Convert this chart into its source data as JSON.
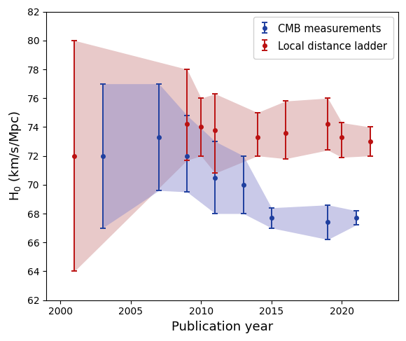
{
  "xlabel": "Publication year",
  "ylabel": "H$_0$ (km/s/Mpc)",
  "xlim": [
    1999,
    2024
  ],
  "ylim": [
    62,
    82
  ],
  "yticks": [
    62,
    64,
    66,
    68,
    70,
    72,
    74,
    76,
    78,
    80,
    82
  ],
  "xticks": [
    2000,
    2005,
    2010,
    2015,
    2020
  ],
  "cmb_years": [
    2003,
    2007,
    2009,
    2011,
    2013,
    2015,
    2019,
    2021
  ],
  "cmb_values": [
    72.0,
    73.3,
    72.0,
    70.5,
    70.0,
    67.7,
    67.4,
    67.7
  ],
  "cmb_err_lo": [
    5.0,
    3.7,
    2.5,
    2.5,
    2.0,
    0.7,
    1.2,
    0.5
  ],
  "cmb_err_hi": [
    5.0,
    3.7,
    2.8,
    2.5,
    2.0,
    0.7,
    1.2,
    0.5
  ],
  "local_years": [
    2001,
    2009,
    2010,
    2011,
    2014,
    2016,
    2019,
    2020,
    2022
  ],
  "local_values": [
    72.0,
    74.2,
    74.0,
    73.8,
    73.3,
    73.6,
    74.2,
    73.3,
    73.0
  ],
  "local_err_lo": [
    8.0,
    2.5,
    2.0,
    3.0,
    1.3,
    1.8,
    1.8,
    1.4,
    1.0
  ],
  "local_err_hi": [
    8.0,
    3.8,
    2.0,
    2.5,
    1.7,
    2.2,
    1.8,
    1.0,
    1.0
  ],
  "cmb_color": "#1f3f9f",
  "local_color": "#bb1111",
  "cmb_fill_color": "#8888cc",
  "local_fill_color": "#cc8888",
  "legend_labels": [
    "CMB measurements",
    "Local distance ladder"
  ]
}
